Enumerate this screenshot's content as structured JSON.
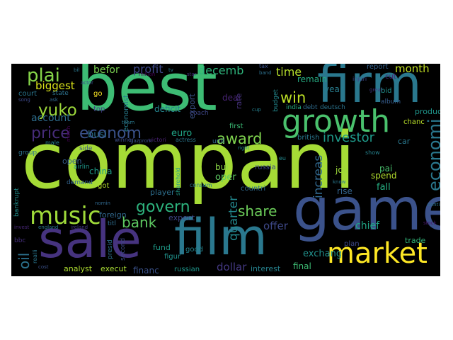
{
  "words": [
    {
      "text": "compani",
      "color": "#a5db36"
    },
    {
      "text": "best",
      "color": "#3dbc74"
    },
    {
      "text": "game",
      "color": "#3b528b"
    },
    {
      "text": "firm",
      "color": "#2a788e"
    },
    {
      "text": "sale",
      "color": "#46337f"
    },
    {
      "text": "film",
      "color": "#2a788e"
    },
    {
      "text": "growth",
      "color": "#4ac16d"
    },
    {
      "text": "market",
      "color": "#fde725"
    },
    {
      "text": "music",
      "color": "#9fda3a"
    },
    {
      "text": "price",
      "color": "#472c7a"
    },
    {
      "text": "yuko",
      "color": "#9dd93b"
    },
    {
      "text": "plai",
      "color": "#86d549"
    },
    {
      "text": "econom",
      "color": "#3b528b"
    },
    {
      "text": "govern",
      "color": "#2db27d"
    },
    {
      "text": "bank",
      "color": "#5ec962"
    },
    {
      "text": "share",
      "color": "#6ccd5a"
    },
    {
      "text": "award",
      "color": "#7fd34e"
    },
    {
      "text": "win",
      "color": "#bddf26"
    },
    {
      "text": "investor",
      "color": "#1f9a8a"
    },
    {
      "text": "economi",
      "color": "#2a788e"
    },
    {
      "text": "increas",
      "color": "#31688e"
    },
    {
      "text": "oil",
      "color": "#2c728e"
    },
    {
      "text": "offer",
      "color": "#3e4989"
    },
    {
      "text": "profit",
      "color": "#3e4989"
    },
    {
      "text": "decemb",
      "color": "#2fb47c"
    },
    {
      "text": "befor",
      "color": "#7ad151"
    },
    {
      "text": "biggest",
      "color": "#d8e219"
    },
    {
      "text": "account",
      "color": "#2e6e8e"
    },
    {
      "text": "time",
      "color": "#b5de2b"
    },
    {
      "text": "month",
      "color": "#c2df23"
    },
    {
      "text": "quarter",
      "color": "#23898e"
    },
    {
      "text": "chief",
      "color": "#20a486"
    },
    {
      "text": "exchang",
      "color": "#21918c"
    },
    {
      "text": "dollar",
      "color": "#443983"
    },
    {
      "text": "interest",
      "color": "#26828e"
    },
    {
      "text": "final",
      "color": "#3dbc74"
    },
    {
      "text": "financ",
      "color": "#3b528b"
    },
    {
      "text": "fund",
      "color": "#1e9c89"
    },
    {
      "text": "busi",
      "color": "#2c728e"
    },
    {
      "text": "euro",
      "color": "#20a486"
    },
    {
      "text": "deficit",
      "color": "#25858e"
    },
    {
      "text": "china",
      "color": "#1f9e89"
    },
    {
      "text": "open",
      "color": "#355f8d"
    },
    {
      "text": "oper",
      "color": "#5ec962"
    },
    {
      "text": "bui",
      "color": "#8bd646"
    },
    {
      "text": "pai",
      "color": "#4ac16d"
    },
    {
      "text": "spend",
      "color": "#b2dd2d"
    },
    {
      "text": "fall",
      "color": "#26ad81"
    },
    {
      "text": "rise",
      "color": "#33638d"
    },
    {
      "text": "job",
      "color": "#9fda3a"
    },
    {
      "text": "trade",
      "color": "#32b67a"
    },
    {
      "text": "year",
      "color": "#287d8e"
    },
    {
      "text": "report",
      "color": "#34618d"
    },
    {
      "text": "remain",
      "color": "#25ab82"
    },
    {
      "text": "deal",
      "color": "#482475"
    },
    {
      "text": "analyst",
      "color": "#addc30"
    },
    {
      "text": "execut",
      "color": "#a8db34"
    },
    {
      "text": "expect",
      "color": "#3f4788"
    },
    {
      "text": "foreign",
      "color": "#31688e"
    },
    {
      "text": "figur",
      "color": "#20938c"
    },
    {
      "text": "russian",
      "color": "#1f968b"
    },
    {
      "text": "player",
      "color": "#2e6f8e"
    },
    {
      "text": "russia",
      "color": "#3e4a89"
    },
    {
      "text": "countri",
      "color": "#306a8e"
    },
    {
      "text": "good",
      "color": "#24868e"
    },
    {
      "text": "plan",
      "color": "#3e4989"
    },
    {
      "text": "product",
      "color": "#1f958b"
    },
    {
      "text": "think",
      "color": "#482878"
    },
    {
      "text": "chanc",
      "color": "#b8de29"
    },
    {
      "text": "court",
      "color": "#2a768e"
    },
    {
      "text": "go",
      "color": "#fde725"
    },
    {
      "text": "top",
      "color": "#433e85"
    },
    {
      "text": "export",
      "color": "#3b528b"
    },
    {
      "text": "economist",
      "color": "#287d8e"
    },
    {
      "text": "coach",
      "color": "#3f4788"
    },
    {
      "text": "state",
      "color": "#2c728e"
    },
    {
      "text": "bid",
      "color": "#21918c"
    },
    {
      "text": "budget",
      "color": "#23888e"
    },
    {
      "text": "cut",
      "color": "#482475"
    },
    {
      "text": "album",
      "color": "#365c8d"
    },
    {
      "text": "india",
      "color": "#25ac82"
    },
    {
      "text": "debt",
      "color": "#2f6c8e"
    },
    {
      "text": "deutsch",
      "color": "#2b748e"
    },
    {
      "text": "british",
      "color": "#2a788e"
    },
    {
      "text": "first",
      "color": "#3bbb75"
    },
    {
      "text": "rate",
      "color": "#46327e"
    },
    {
      "text": "unit",
      "color": "#31688e"
    },
    {
      "text": "victori",
      "color": "#482071"
    },
    {
      "text": "actress",
      "color": "#2a778e"
    },
    {
      "text": "winner",
      "color": "#3e4c8a"
    },
    {
      "text": "gazprom",
      "color": "#3b518b"
    },
    {
      "text": "team",
      "color": "#2a788e"
    },
    {
      "text": "match",
      "color": "#440154"
    },
    {
      "text": "male",
      "color": "#277f8e"
    },
    {
      "text": "group",
      "color": "#2c738e"
    },
    {
      "text": "airlin",
      "color": "#1f988b"
    },
    {
      "text": "demand",
      "color": "#33638d"
    },
    {
      "text": "got",
      "color": "#b5de2b"
    },
    {
      "text": "side",
      "color": "#3b528b"
    },
    {
      "text": "titl",
      "color": "#2e6e8e"
    },
    {
      "text": "presid",
      "color": "#2d708e"
    },
    {
      "text": "second",
      "color": "#3e4989"
    },
    {
      "text": "consum",
      "color": "#2a788e"
    },
    {
      "text": "sharehold",
      "color": "#1f9a8a"
    },
    {
      "text": "england",
      "color": "#2a788e"
    },
    {
      "text": "ireland",
      "color": "#443983"
    },
    {
      "text": "bbc",
      "color": "#46307e"
    },
    {
      "text": "bankrupt",
      "color": "#21908d"
    },
    {
      "text": "invest",
      "color": "#482677"
    },
    {
      "text": "realli",
      "color": "#2a768e"
    },
    {
      "text": "cost",
      "color": "#3b528b"
    },
    {
      "text": "tax",
      "color": "#3b528b"
    },
    {
      "text": "band",
      "color": "#2d708e"
    },
    {
      "text": "injuri",
      "color": "#3e4a89"
    },
    {
      "text": "car",
      "color": "#2a788e"
    },
    {
      "text": "show",
      "color": "#26828e"
    },
    {
      "text": "know",
      "color": "#2a788e"
    },
    {
      "text": "stock",
      "color": "#481a6c"
    },
    {
      "text": "great",
      "color": "#443a83"
    },
    {
      "text": "right",
      "color": "#24878e"
    },
    {
      "text": "star",
      "color": "#46317e"
    },
    {
      "text": "million",
      "color": "#440154"
    },
    {
      "text": "tv",
      "color": "#2a788e"
    },
    {
      "text": "song",
      "color": "#3e4989"
    },
    {
      "text": "actor",
      "color": "#3b528b"
    },
    {
      "text": "ask",
      "color": "#31688e"
    },
    {
      "text": "cup",
      "color": "#27808e"
    },
    {
      "text": "bil",
      "color": "#2a788e"
    },
    {
      "text": "nomin",
      "color": "#31688e"
    },
    {
      "text": "contin",
      "color": "#2c728e"
    },
    {
      "text": "eu",
      "color": "#23898e"
    },
    {
      "text": "firm",
      "color": "#2a788e"
    },
    {
      "text": "hit",
      "color": "#3e4989"
    }
  ]
}
